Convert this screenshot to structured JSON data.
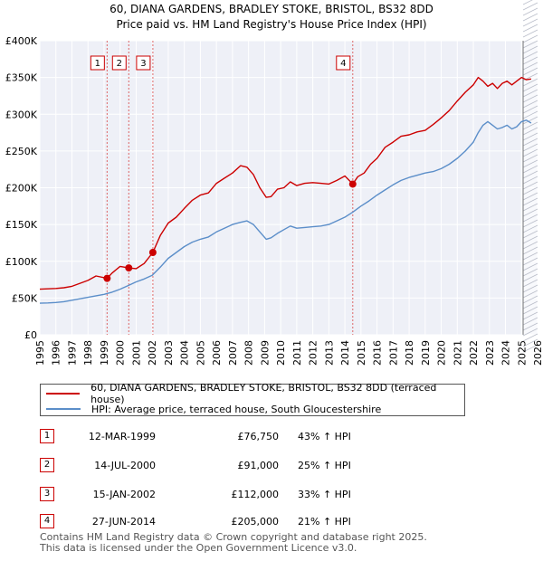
{
  "chart_data": {
    "type": "line",
    "title": "60, DIANA GARDENS, BRADLEY STOKE, BRISTOL, BS32 8DD",
    "subtitle": "Price paid vs. HM Land Registry's House Price Index (HPI)",
    "xlim": [
      1995,
      2026
    ],
    "ylim": [
      0,
      400000
    ],
    "x_ticks": [
      1995,
      1996,
      1997,
      1998,
      1999,
      2000,
      2001,
      2002,
      2003,
      2004,
      2005,
      2006,
      2007,
      2008,
      2009,
      2010,
      2011,
      2012,
      2013,
      2014,
      2015,
      2016,
      2017,
      2018,
      2019,
      2020,
      2021,
      2022,
      2023,
      2024,
      2025,
      2026
    ],
    "y_ticks": [
      {
        "value": 0,
        "label": "£0"
      },
      {
        "value": 50000,
        "label": "£50K"
      },
      {
        "value": 100000,
        "label": "£100K"
      },
      {
        "value": 150000,
        "label": "£150K"
      },
      {
        "value": 200000,
        "label": "£200K"
      },
      {
        "value": 250000,
        "label": "£250K"
      },
      {
        "value": 300000,
        "label": "£300K"
      },
      {
        "value": 350000,
        "label": "£350K"
      },
      {
        "value": 400000,
        "label": "£400K"
      }
    ],
    "projection_start": 2025.1,
    "series": [
      {
        "name": "60, DIANA GARDENS, BRADLEY STOKE, BRISTOL, BS32 8DD (terraced house)",
        "color": "#cc0000",
        "x": [
          1995,
          1995.5,
          1996,
          1996.5,
          1997,
          1997.5,
          1998,
          1998.5,
          1999.19,
          1999.5,
          2000,
          2000.54,
          2001,
          2001.5,
          2002.04,
          2002.5,
          2003,
          2003.5,
          2004,
          2004.5,
          2005,
          2005.5,
          2006,
          2006.5,
          2007,
          2007.5,
          2007.9,
          2008.3,
          2008.7,
          2009.1,
          2009.4,
          2009.8,
          2010.2,
          2010.6,
          2011,
          2011.5,
          2012,
          2012.5,
          2013,
          2013.5,
          2014,
          2014.49,
          2014.8,
          2015.2,
          2015.6,
          2016,
          2016.5,
          2017,
          2017.5,
          2018,
          2018.5,
          2019,
          2019.5,
          2020,
          2020.5,
          2021,
          2021.5,
          2022,
          2022.3,
          2022.6,
          2022.9,
          2023.2,
          2023.5,
          2023.8,
          2024.1,
          2024.4,
          2024.7,
          2025,
          2025.3,
          2025.6
        ],
        "values": [
          62000,
          62500,
          63000,
          64000,
          66000,
          70000,
          74000,
          80000,
          76750,
          84000,
          93000,
          91000,
          90000,
          97000,
          112000,
          135000,
          152000,
          160000,
          172000,
          183000,
          190000,
          193000,
          206000,
          213000,
          220000,
          230000,
          228000,
          218000,
          200000,
          187000,
          188000,
          198000,
          200000,
          208000,
          203000,
          206000,
          207000,
          206000,
          205000,
          210000,
          216000,
          205000,
          215000,
          220000,
          232000,
          240000,
          255000,
          262000,
          270000,
          272000,
          276000,
          278000,
          286000,
          295000,
          305000,
          318000,
          330000,
          340000,
          350000,
          345000,
          338000,
          342000,
          335000,
          342000,
          345000,
          340000,
          345000,
          350000,
          347000,
          348000
        ]
      },
      {
        "name": "HPI: Average price, terraced house, South Gloucestershire",
        "color": "#5b8ec9",
        "x": [
          1995,
          1995.5,
          1996,
          1996.5,
          1997,
          1997.5,
          1998,
          1998.5,
          1999,
          1999.5,
          2000,
          2000.5,
          2001,
          2001.5,
          2002,
          2002.5,
          2003,
          2003.5,
          2004,
          2004.5,
          2005,
          2005.5,
          2006,
          2006.5,
          2007,
          2007.5,
          2007.9,
          2008.3,
          2008.7,
          2009.1,
          2009.4,
          2009.8,
          2010.2,
          2010.6,
          2011,
          2011.5,
          2012,
          2012.5,
          2013,
          2013.5,
          2014,
          2014.5,
          2015,
          2015.5,
          2016,
          2016.5,
          2017,
          2017.5,
          2018,
          2018.5,
          2019,
          2019.5,
          2020,
          2020.5,
          2021,
          2021.5,
          2022,
          2022.3,
          2022.6,
          2022.9,
          2023.2,
          2023.5,
          2023.8,
          2024.1,
          2024.4,
          2024.7,
          2025,
          2025.3,
          2025.6
        ],
        "values": [
          43000,
          43300,
          44000,
          45000,
          47000,
          49000,
          51000,
          53000,
          55000,
          58000,
          62000,
          67000,
          72000,
          76000,
          81000,
          92000,
          104000,
          112000,
          120000,
          126000,
          130000,
          133000,
          140000,
          145000,
          150000,
          153000,
          155000,
          150000,
          140000,
          130000,
          132000,
          138000,
          143000,
          148000,
          145000,
          146000,
          147000,
          148000,
          150000,
          155000,
          160000,
          167000,
          175000,
          182000,
          190000,
          197000,
          204000,
          210000,
          214000,
          217000,
          220000,
          222000,
          226000,
          232000,
          240000,
          250000,
          262000,
          275000,
          285000,
          290000,
          285000,
          280000,
          282000,
          285000,
          280000,
          283000,
          290000,
          292000,
          288000
        ]
      }
    ],
    "annotations": [
      {
        "id": "1",
        "x": 1999.19,
        "value": 76750
      },
      {
        "id": "2",
        "x": 2000.54,
        "value": 91000
      },
      {
        "id": "3",
        "x": 2002.04,
        "value": 112000
      },
      {
        "id": "4",
        "x": 2014.49,
        "value": 205000
      }
    ]
  },
  "legend": {
    "property_label": "60, DIANA GARDENS, BRADLEY STOKE, BRISTOL, BS32 8DD (terraced house)",
    "hpi_label": "HPI: Average price, terraced house, South Gloucestershire"
  },
  "transactions": [
    {
      "id": "1",
      "date": "12-MAR-1999",
      "price": "£76,750",
      "hpi": "43% ↑ HPI"
    },
    {
      "id": "2",
      "date": "14-JUL-2000",
      "price": "£91,000",
      "hpi": "25% ↑ HPI"
    },
    {
      "id": "3",
      "date": "15-JAN-2002",
      "price": "£112,000",
      "hpi": "33% ↑ HPI"
    },
    {
      "id": "4",
      "date": "27-JUN-2014",
      "price": "£205,000",
      "hpi": "21% ↑ HPI"
    }
  ],
  "footer": {
    "line1": "Contains HM Land Registry data © Crown copyright and database right 2025.",
    "line2": "This data is licensed under the Open Government Licence v3.0."
  }
}
